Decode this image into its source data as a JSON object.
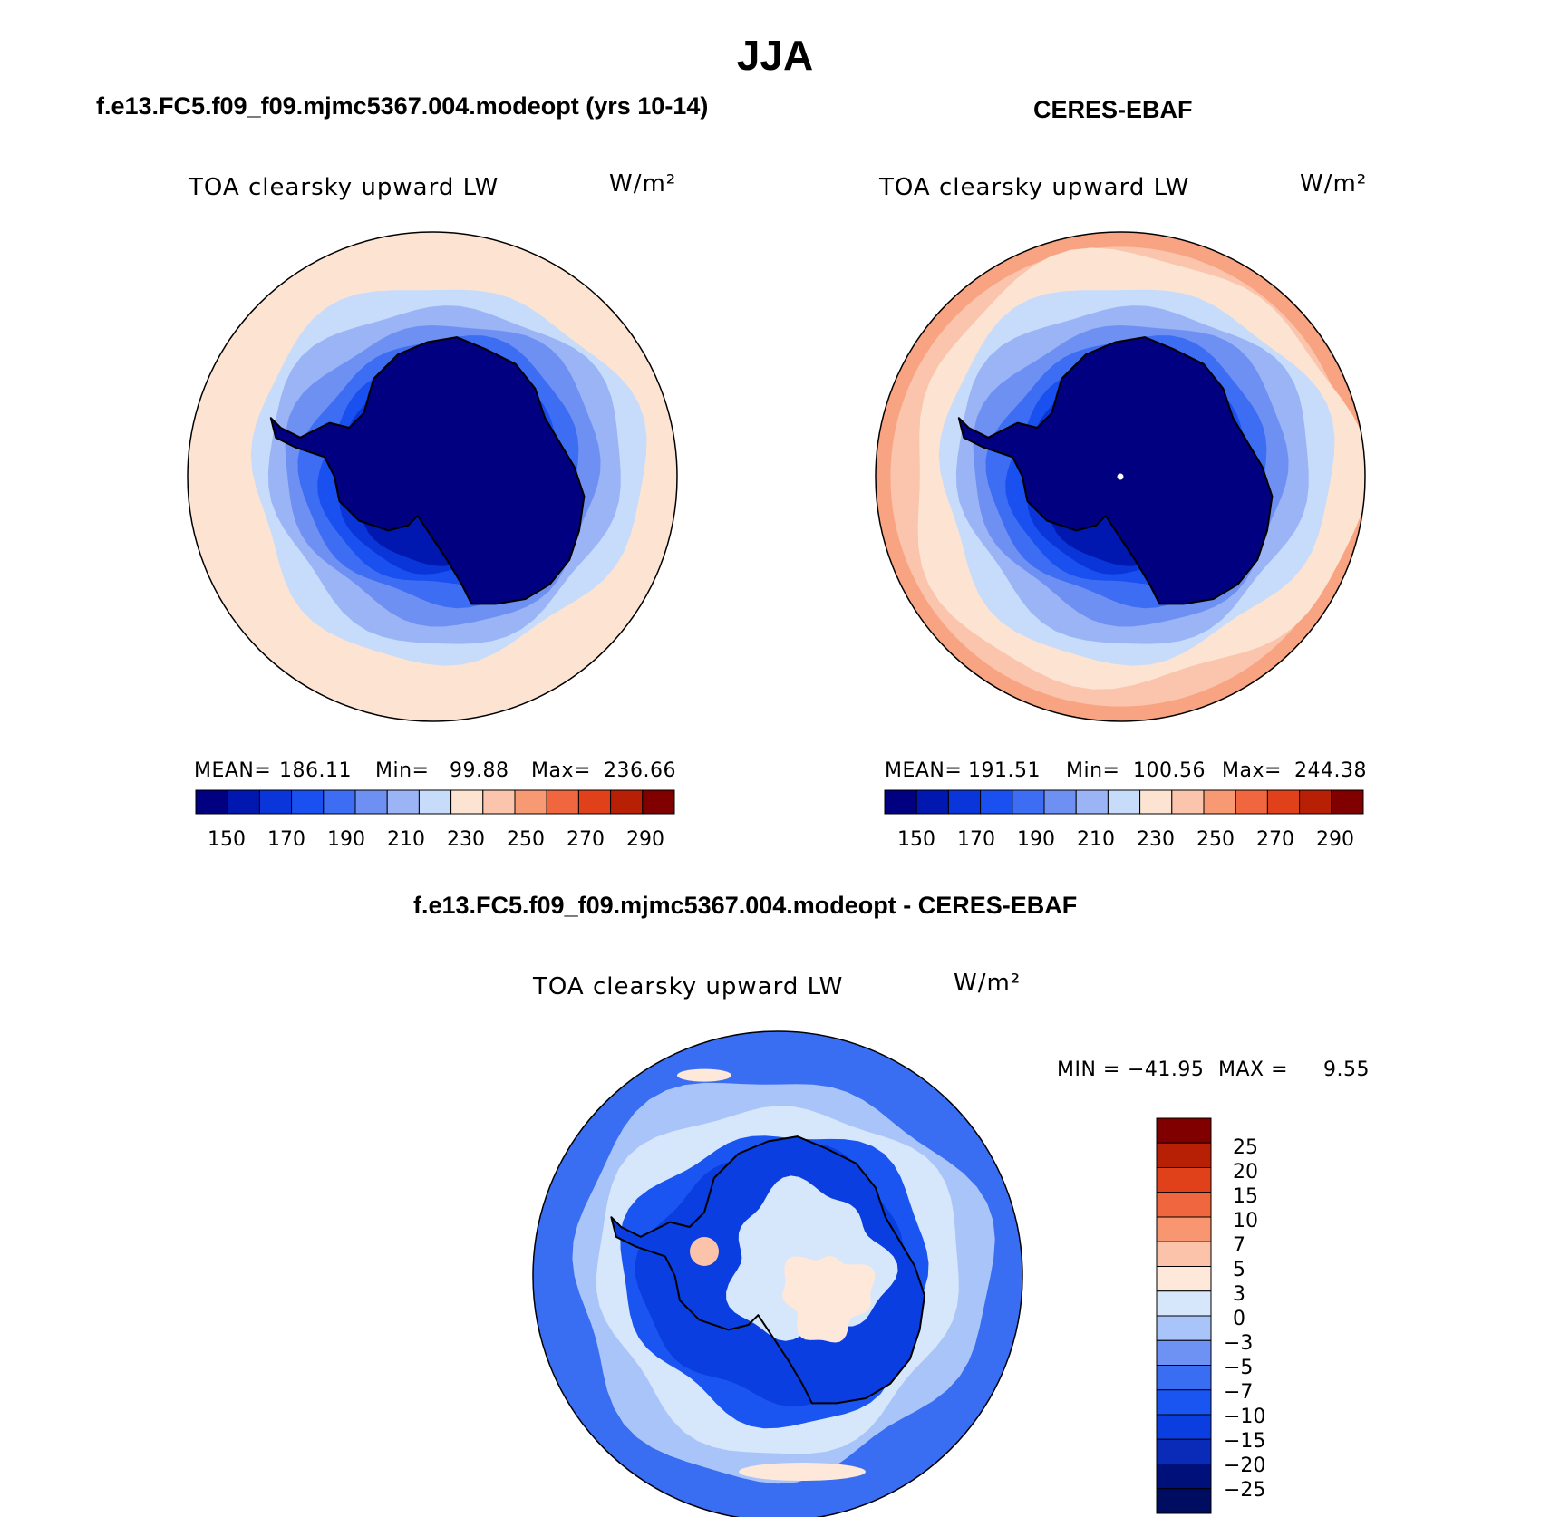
{
  "title": "JJA",
  "colors": {
    "seq": [
      "#000080",
      "#0018b0",
      "#0a35d8",
      "#1a50f0",
      "#3c6df2",
      "#6e90f2",
      "#9ab4f6",
      "#c6dcfa",
      "#fde4d2",
      "#fbc4ac",
      "#f79a74",
      "#f0663e",
      "#e0401a",
      "#b82006",
      "#800000"
    ],
    "div": [
      "#00107a",
      "#0a2ab8",
      "#0a3ee0",
      "#1a55f2",
      "#3a6ef2",
      "#6e92f4",
      "#a9c4f8",
      "#d6e6fb",
      "#fde8da",
      "#fbc4aa",
      "#f79670",
      "#f0663e",
      "#e0401a",
      "#b82006",
      "#800000"
    ]
  },
  "panels": [
    {
      "title": "f.e13.FC5.f09_f09.mjmc5367.004.modeopt (yrs 10-14)",
      "var_name": "TOA clearsky upward LW",
      "units": "W/m²",
      "mean_label": "MEAN=",
      "mean": "186.11",
      "min_label": "Min=",
      "min": "99.88",
      "max_label": "Max=",
      "max": "236.66",
      "colorbar_ticks": [
        "150",
        "170",
        "190",
        "210",
        "230",
        "250",
        "270",
        "290"
      ]
    },
    {
      "title": "CERES-EBAF",
      "var_name": "TOA clearsky upward LW",
      "units": "W/m²",
      "mean_label": "MEAN=",
      "mean": "191.51",
      "min_label": "Min=",
      "min": "100.56",
      "max_label": "Max=",
      "max": "244.38",
      "colorbar_ticks": [
        "150",
        "170",
        "190",
        "210",
        "230",
        "250",
        "270",
        "290"
      ]
    }
  ],
  "diff_panel": {
    "title": "f.e13.FC5.f09_f09.mjmc5367.004.modeopt - CERES-EBAF",
    "var_name": "TOA clearsky upward LW",
    "units": "W/m²",
    "min_label": "MIN =",
    "min": "−41.95",
    "max_label": "MAX =",
    "max": "9.55",
    "colorbar_ticks": [
      "25",
      "20",
      "15",
      "10",
      "7",
      "5",
      "3",
      "0",
      "−3",
      "−5",
      "−7",
      "−10",
      "−15",
      "−20",
      "−25"
    ]
  }
}
